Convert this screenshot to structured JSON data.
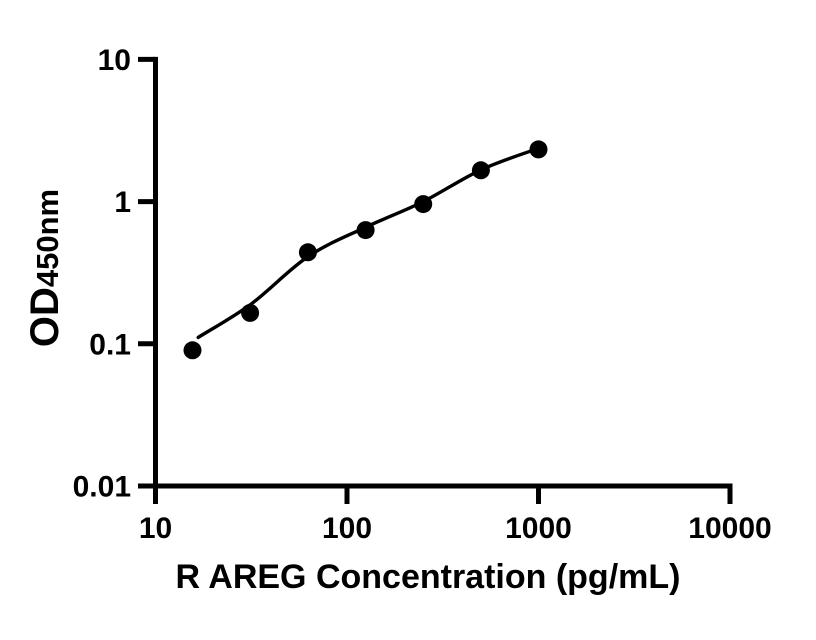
{
  "figure": {
    "background_color": "#ffffff",
    "ink_color": "#000000"
  },
  "chart_data": {
    "type": "scatter",
    "title": "",
    "xlabel": "R AREG Concentration (pg/mL)",
    "ylabel": "OD",
    "ylabel_subscript": "450nm",
    "x_scale": "log10",
    "y_scale": "log10",
    "xlim": [
      10,
      10000
    ],
    "ylim": [
      0.01,
      10
    ],
    "grid": false,
    "legend": "none",
    "x_ticks": [
      {
        "value": 10,
        "label": "10"
      },
      {
        "value": 100,
        "label": "100"
      },
      {
        "value": 1000,
        "label": "1000"
      },
      {
        "value": 10000,
        "label": "10000"
      }
    ],
    "y_ticks": [
      {
        "value": 10,
        "label": "10"
      },
      {
        "value": 1,
        "label": "1"
      },
      {
        "value": 0.1,
        "label": "0.1"
      },
      {
        "value": 0.01,
        "label": "0.01"
      }
    ],
    "series": [
      {
        "marker": "filled-circle",
        "color": "#000000",
        "points": [
          {
            "x": 15.6,
            "y": 0.09
          },
          {
            "x": 31.2,
            "y": 0.165
          },
          {
            "x": 62.5,
            "y": 0.44
          },
          {
            "x": 125,
            "y": 0.63
          },
          {
            "x": 250,
            "y": 0.96
          },
          {
            "x": 500,
            "y": 1.66
          },
          {
            "x": 1000,
            "y": 2.33
          }
        ]
      }
    ],
    "fit_curve": {
      "color": "#000000",
      "points": [
        {
          "x": 16.7,
          "y": 0.111
        },
        {
          "x": 31.5,
          "y": 0.19
        },
        {
          "x": 62.5,
          "y": 0.41
        },
        {
          "x": 125,
          "y": 0.66
        },
        {
          "x": 250,
          "y": 1.0
        },
        {
          "x": 500,
          "y": 1.67
        },
        {
          "x": 1000,
          "y": 2.37
        }
      ]
    }
  }
}
